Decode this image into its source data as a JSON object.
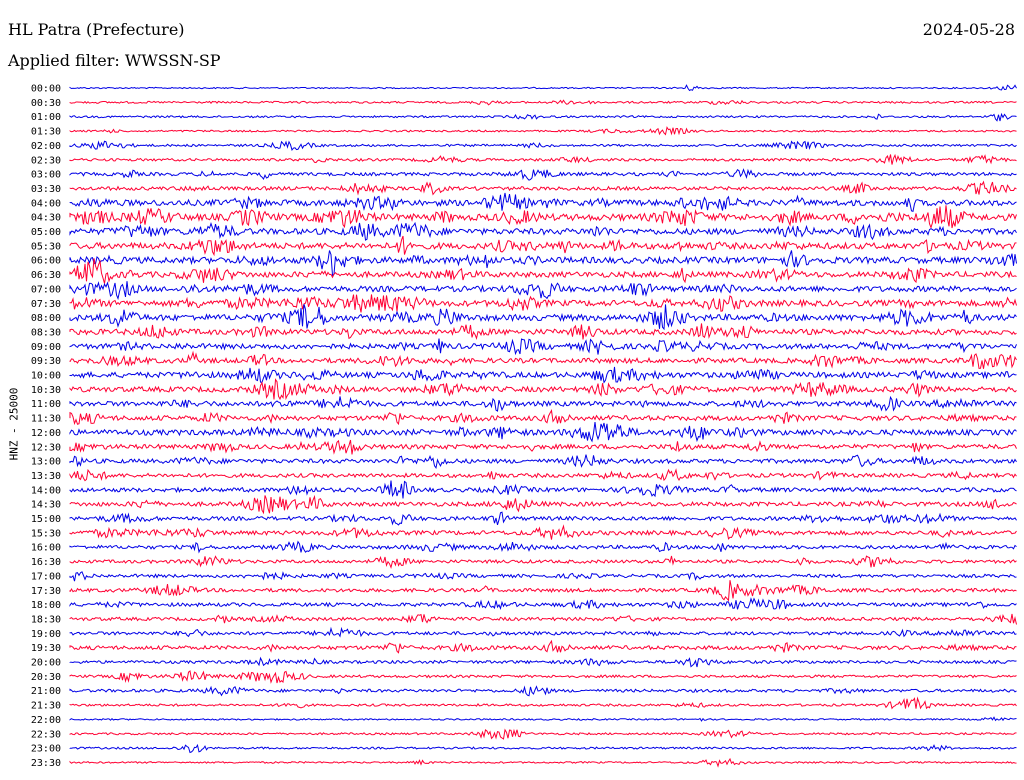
{
  "header": {
    "station": "HL Patra (Prefecture)",
    "filter": "Applied filter: WWSSN-SP",
    "date": "2024-05-28"
  },
  "chart_data": {
    "type": "line",
    "title": "HL Patra (Prefecture)",
    "subtitle": "Applied filter: WWSSN-SP",
    "ylabel": "HNZ - 25000",
    "xlabel": "",
    "date": "2024-05-28",
    "colors": [
      "#0000e6",
      "#ff0033"
    ],
    "rows": [
      {
        "time": "00:00",
        "level": 0.05
      },
      {
        "time": "00:30",
        "level": 0.15
      },
      {
        "time": "01:00",
        "level": 0.15
      },
      {
        "time": "01:30",
        "level": 0.12
      },
      {
        "time": "02:00",
        "level": 0.2
      },
      {
        "time": "02:30",
        "level": 0.25
      },
      {
        "time": "03:00",
        "level": 0.35
      },
      {
        "time": "03:30",
        "level": 0.4
      },
      {
        "time": "04:00",
        "level": 0.75
      },
      {
        "time": "04:30",
        "level": 0.85
      },
      {
        "time": "05:00",
        "level": 0.75
      },
      {
        "time": "05:30",
        "level": 0.8
      },
      {
        "time": "06:00",
        "level": 0.8
      },
      {
        "time": "06:30",
        "level": 0.7
      },
      {
        "time": "07:00",
        "level": 0.7
      },
      {
        "time": "07:30",
        "level": 0.75
      },
      {
        "time": "08:00",
        "level": 0.8
      },
      {
        "time": "08:30",
        "level": 0.7
      },
      {
        "time": "09:00",
        "level": 0.65
      },
      {
        "time": "09:30",
        "level": 0.6
      },
      {
        "time": "10:00",
        "level": 0.7
      },
      {
        "time": "10:30",
        "level": 0.65
      },
      {
        "time": "11:00",
        "level": 0.6
      },
      {
        "time": "11:30",
        "level": 0.6
      },
      {
        "time": "12:00",
        "level": 0.7
      },
      {
        "time": "12:30",
        "level": 0.55
      },
      {
        "time": "13:00",
        "level": 0.5
      },
      {
        "time": "13:30",
        "level": 0.45
      },
      {
        "time": "14:00",
        "level": 0.5
      },
      {
        "time": "14:30",
        "level": 0.5
      },
      {
        "time": "15:00",
        "level": 0.45
      },
      {
        "time": "15:30",
        "level": 0.5
      },
      {
        "time": "16:00",
        "level": 0.4
      },
      {
        "time": "16:30",
        "level": 0.35
      },
      {
        "time": "17:00",
        "level": 0.35
      },
      {
        "time": "17:30",
        "level": 0.4
      },
      {
        "time": "18:00",
        "level": 0.4
      },
      {
        "time": "18:30",
        "level": 0.35
      },
      {
        "time": "19:00",
        "level": 0.35
      },
      {
        "time": "19:30",
        "level": 0.45
      },
      {
        "time": "20:00",
        "level": 0.3
      },
      {
        "time": "20:30",
        "level": 0.25
      },
      {
        "time": "21:00",
        "level": 0.3
      },
      {
        "time": "21:30",
        "level": 0.2
      },
      {
        "time": "22:00",
        "level": 0.08
      },
      {
        "time": "22:30",
        "level": 0.15
      },
      {
        "time": "23:00",
        "level": 0.15
      },
      {
        "time": "23:30",
        "level": 0.1
      }
    ]
  }
}
